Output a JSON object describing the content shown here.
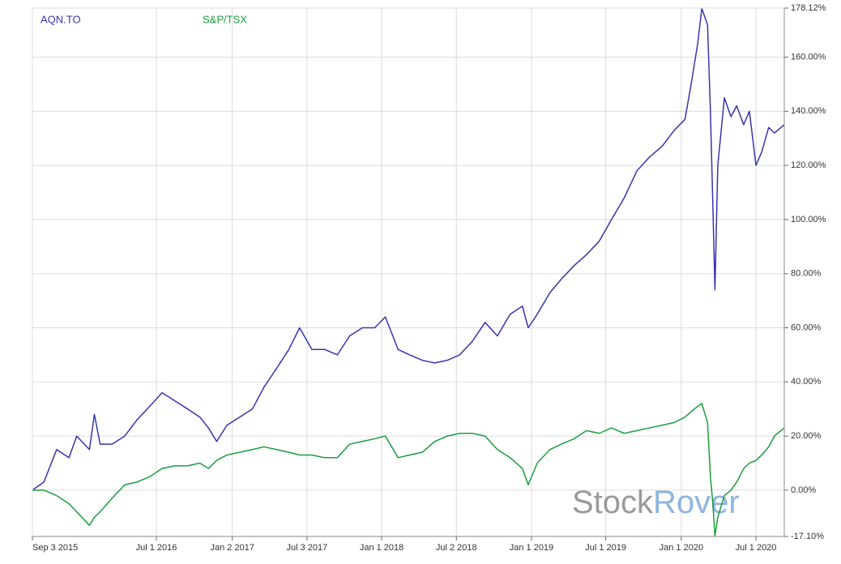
{
  "chart_data": {
    "type": "line",
    "x": [
      "2015-09-03",
      "2015-10-01",
      "2015-11-01",
      "2015-12-01",
      "2015-12-20",
      "2016-01-20",
      "2016-02-01",
      "2016-02-15",
      "2016-03-15",
      "2016-04-15",
      "2016-05-15",
      "2016-06-15",
      "2016-07-15",
      "2016-08-15",
      "2016-09-15",
      "2016-10-15",
      "2016-11-05",
      "2016-11-25",
      "2016-12-20",
      "2017-01-20",
      "2017-02-20",
      "2017-03-20",
      "2017-04-20",
      "2017-05-20",
      "2017-06-15",
      "2017-07-15",
      "2017-08-15",
      "2017-09-15",
      "2017-10-15",
      "2017-11-15",
      "2017-12-15",
      "2018-01-10",
      "2018-02-10",
      "2018-03-10",
      "2018-04-10",
      "2018-05-10",
      "2018-06-10",
      "2018-07-10",
      "2018-08-10",
      "2018-09-10",
      "2018-10-10",
      "2018-11-10",
      "2018-12-10",
      "2018-12-24",
      "2019-01-15",
      "2019-02-15",
      "2019-03-15",
      "2019-04-15",
      "2019-05-15",
      "2019-06-15",
      "2019-07-15",
      "2019-08-15",
      "2019-09-15",
      "2019-10-15",
      "2019-11-15",
      "2019-12-15",
      "2020-01-10",
      "2020-01-25",
      "2020-02-10",
      "2020-02-20",
      "2020-03-05",
      "2020-03-12",
      "2020-03-18",
      "2020-03-23",
      "2020-03-30",
      "2020-04-15",
      "2020-05-01",
      "2020-05-15",
      "2020-06-01",
      "2020-06-15",
      "2020-07-01",
      "2020-07-15",
      "2020-08-01",
      "2020-08-15",
      "2020-09-08"
    ],
    "series": [
      {
        "name": "AQN.TO",
        "color": "#3535b0",
        "values": [
          0,
          3,
          15,
          12,
          20,
          15,
          28,
          17,
          17,
          20,
          26,
          31,
          36,
          33,
          30,
          27,
          23,
          18,
          24,
          27,
          30,
          38,
          45,
          52,
          60,
          52,
          52,
          50,
          57,
          60,
          60,
          64,
          52,
          50,
          48,
          47,
          48,
          50,
          55,
          62,
          57,
          65,
          68,
          60,
          65,
          73,
          78,
          83,
          87,
          92,
          100,
          108,
          118,
          123,
          127,
          133,
          137,
          150,
          165,
          178,
          172,
          140,
          105,
          74,
          120,
          145,
          138,
          142,
          135,
          140,
          120,
          125,
          134,
          132,
          135
        ]
      },
      {
        "name": "S&P/TSX",
        "color": "#1a9e3f",
        "values": [
          0,
          0,
          -2,
          -5,
          -8,
          -13,
          -10,
          -8,
          -3,
          2,
          3,
          5,
          8,
          9,
          9,
          10,
          8,
          11,
          13,
          14,
          15,
          16,
          15,
          14,
          13,
          13,
          12,
          12,
          17,
          18,
          19,
          20,
          12,
          13,
          14,
          18,
          20,
          21,
          21,
          20,
          15,
          12,
          8,
          2,
          10,
          15,
          17,
          19,
          22,
          21,
          23,
          21,
          22,
          23,
          24,
          25,
          27,
          29,
          31,
          32,
          25,
          5,
          -5,
          -17,
          -10,
          -2,
          0,
          3,
          8,
          10,
          11,
          13,
          16,
          20,
          23
        ]
      }
    ],
    "xlim": [
      "2015-09-03",
      "2020-09-08"
    ],
    "xticks": [
      {
        "value": "2015-09-03",
        "label": "Sep 3 2015"
      },
      {
        "value": "2016-07-01",
        "label": "Jul 1 2016"
      },
      {
        "value": "2017-01-02",
        "label": "Jan 2 2017"
      },
      {
        "value": "2017-07-03",
        "label": "Jul 3 2017"
      },
      {
        "value": "2018-01-01",
        "label": "Jan 1 2018"
      },
      {
        "value": "2018-07-02",
        "label": "Jul 2 2018"
      },
      {
        "value": "2019-01-01",
        "label": "Jan 1 2019"
      },
      {
        "value": "2019-07-01",
        "label": "Jul 1 2019"
      },
      {
        "value": "2020-01-01",
        "label": "Jan 1 2020"
      },
      {
        "value": "2020-07-01",
        "label": "Jul 1 2020"
      }
    ],
    "ylim": [
      -17.1,
      178.12
    ],
    "yticks": [
      {
        "value": -17.1,
        "label": "-17.10%"
      },
      {
        "value": 0,
        "label": "0.00%"
      },
      {
        "value": 20,
        "label": "20.00%"
      },
      {
        "value": 40,
        "label": "40.00%"
      },
      {
        "value": 60,
        "label": "60.00%"
      },
      {
        "value": 80,
        "label": "80.00%"
      },
      {
        "value": 100,
        "label": "100.00%"
      },
      {
        "value": 120,
        "label": "120.00%"
      },
      {
        "value": 140,
        "label": "140.00%"
      },
      {
        "value": 160,
        "label": "160.00%"
      },
      {
        "value": 178.12,
        "label": "178.12%"
      }
    ],
    "grid": true,
    "legend": "top-left",
    "watermark": [
      "Stock",
      "Rover"
    ]
  }
}
